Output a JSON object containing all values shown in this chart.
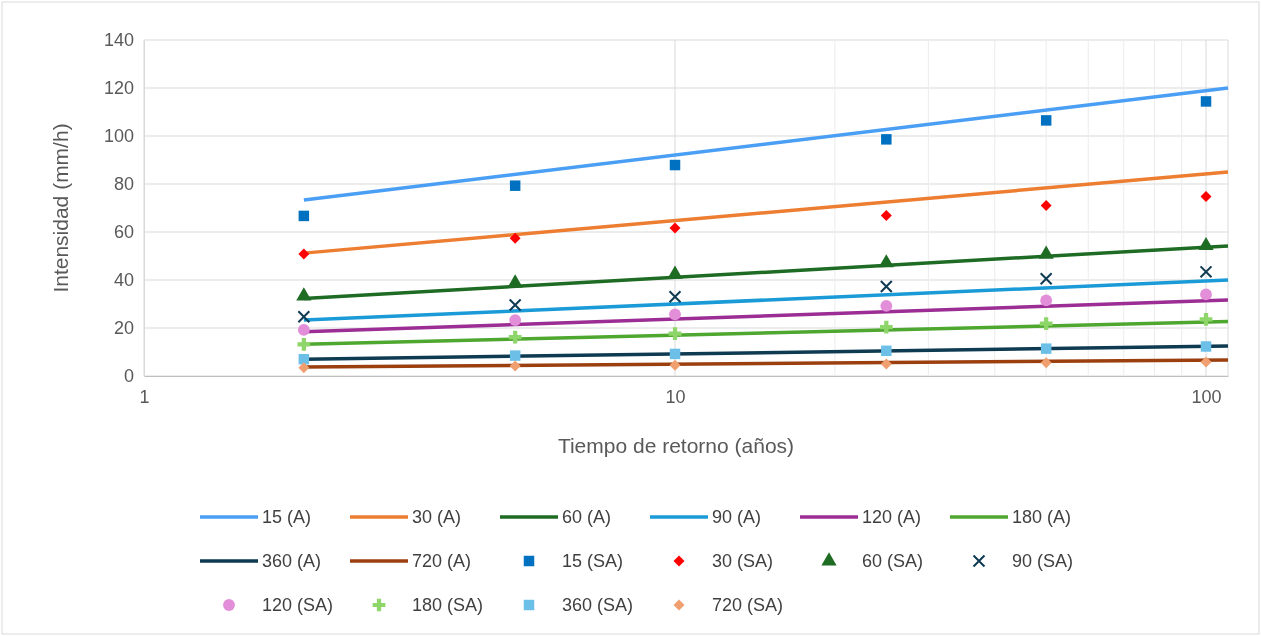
{
  "chart_data": {
    "type": "line",
    "xlabel": "Tiempo de retorno (años)",
    "ylabel": "Intensidad (mm/h)",
    "log": "x",
    "xlim": [
      1,
      110
    ],
    "ylim": [
      0,
      140
    ],
    "xticks": [
      1,
      10,
      {
        "value": 20,
        "label": null
      },
      {
        "value": 30,
        "label": null
      },
      {
        "value": 40,
        "label": null
      },
      {
        "value": 50,
        "label": null
      },
      {
        "value": 60,
        "label": null
      },
      {
        "value": 70,
        "label": null
      },
      {
        "value": 80,
        "label": null
      },
      {
        "value": 90,
        "label": null
      },
      100
    ],
    "yticks": [
      0,
      20,
      40,
      60,
      80,
      100,
      120,
      140
    ],
    "grid": true,
    "legend": "bottom",
    "series": [
      {
        "name": "15 (A)",
        "marker": "none",
        "line_style": "solid",
        "color": "#4a9ff5",
        "x": [
          2,
          110
        ],
        "values": [
          73.3,
          120
        ]
      },
      {
        "name": "30 (A)",
        "marker": "none",
        "line_style": "solid",
        "color": "#ed7d31",
        "x": [
          2,
          110
        ],
        "values": [
          51.2,
          85
        ]
      },
      {
        "name": "60 (A)",
        "marker": "none",
        "line_style": "solid",
        "color": "#1e6b24",
        "x": [
          2,
          110
        ],
        "values": [
          32.3,
          54.2
        ]
      },
      {
        "name": "90 (A)",
        "marker": "none",
        "line_style": "solid",
        "color": "#1a9bd7",
        "x": [
          2,
          110
        ],
        "values": [
          23.3,
          40
        ]
      },
      {
        "name": "120 (A)",
        "marker": "none",
        "line_style": "solid",
        "color": "#9b2d94",
        "x": [
          2,
          110
        ],
        "values": [
          18.4,
          31.7
        ]
      },
      {
        "name": "180 (A)",
        "marker": "none",
        "line_style": "solid",
        "color": "#4ea72e",
        "x": [
          2,
          110
        ],
        "values": [
          13.2,
          22.7
        ]
      },
      {
        "name": "360 (A)",
        "marker": "none",
        "line_style": "solid",
        "color": "#0e3a52",
        "x": [
          2,
          110
        ],
        "values": [
          7,
          12.5
        ]
      },
      {
        "name": "720 (A)",
        "marker": "none",
        "line_style": "solid",
        "color": "#9c3f0e",
        "x": [
          2,
          110
        ],
        "values": [
          3.7,
          6.7
        ]
      },
      {
        "name": "15 (SA)",
        "type": "scatter",
        "marker": "square",
        "color": "#0070c0",
        "x": [
          2,
          5,
          10,
          25,
          50,
          100
        ],
        "values": [
          66.7,
          79.3,
          87.9,
          98.6,
          106.5,
          114.4
        ]
      },
      {
        "name": "30 (SA)",
        "type": "scatter",
        "marker": "diamond",
        "color": "#ff0000",
        "x": [
          2,
          5,
          10,
          25,
          50,
          100
        ],
        "values": [
          50.8,
          57.4,
          61.7,
          66.9,
          71,
          74.8
        ]
      },
      {
        "name": "60 (SA)",
        "type": "scatter",
        "marker": "triangle",
        "color": "#1e6b24",
        "x": [
          2,
          5,
          10,
          25,
          50,
          100
        ],
        "values": [
          33.3,
          38.7,
          42.4,
          47.1,
          50.7,
          54.3
        ]
      },
      {
        "name": "90 (SA)",
        "type": "scatter",
        "marker": "x",
        "color": "#0e3a52",
        "x": [
          2,
          5,
          10,
          25,
          50,
          100
        ],
        "values": [
          24.7,
          29.6,
          33,
          37.3,
          40.5,
          43.4
        ]
      },
      {
        "name": "120 (SA)",
        "type": "scatter",
        "marker": "circle",
        "color": "#e38ed8",
        "x": [
          2,
          5,
          10,
          25,
          50,
          100
        ],
        "values": [
          19.2,
          23.3,
          25.7,
          29.2,
          31.5,
          34
        ]
      },
      {
        "name": "180 (SA)",
        "type": "scatter",
        "marker": "cross",
        "color": "#8fd66a",
        "x": [
          2,
          5,
          10,
          25,
          50,
          100
        ],
        "values": [
          13.2,
          16.2,
          17.7,
          20.4,
          21.8,
          23.6
        ]
      },
      {
        "name": "360 (SA)",
        "type": "scatter",
        "marker": "square",
        "color": "#6cc0e8",
        "x": [
          2,
          5,
          10,
          25,
          50,
          100
        ],
        "values": [
          7,
          8.5,
          9.2,
          10.5,
          11.4,
          12.3
        ]
      },
      {
        "name": "720 (SA)",
        "type": "scatter",
        "marker": "diamond",
        "color": "#f0a070",
        "x": [
          2,
          5,
          10,
          25,
          50,
          100
        ],
        "values": [
          3.4,
          4.2,
          4.5,
          5,
          5.5,
          5.8
        ]
      }
    ]
  }
}
